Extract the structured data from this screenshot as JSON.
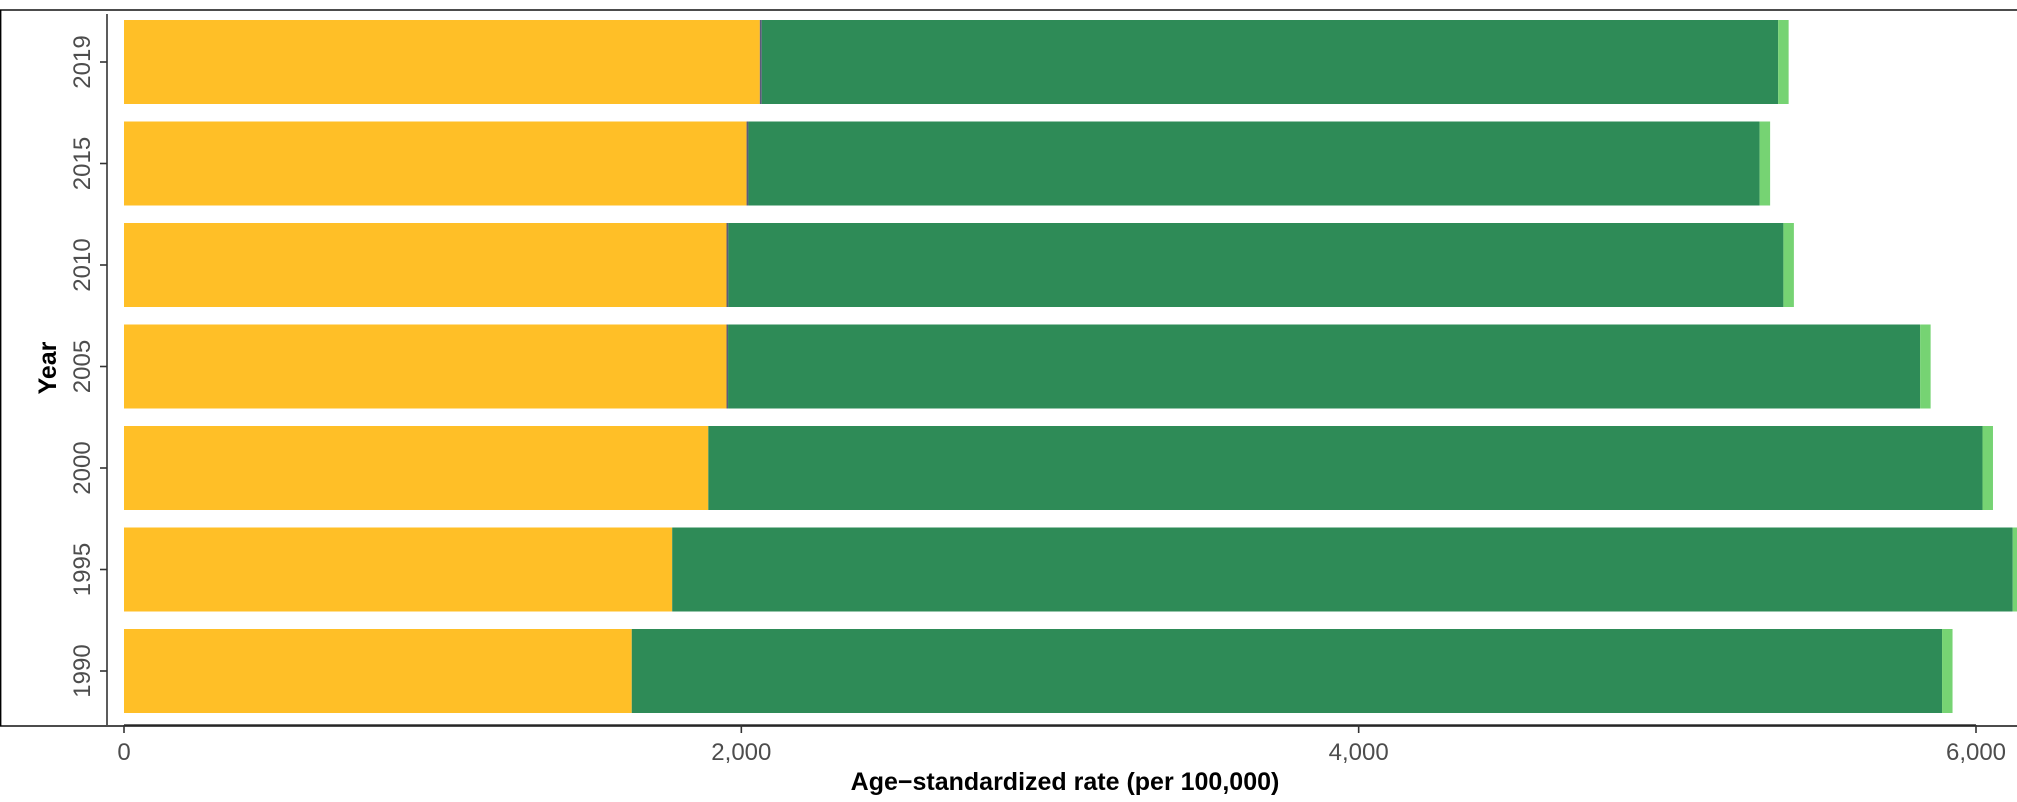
{
  "chart_data": {
    "type": "bar",
    "orientation": "horizontal",
    "stacked": true,
    "xlabel": "Age−standardized rate (per 100,000)",
    "ylabel": "Year",
    "xlim": [
      0,
      6100
    ],
    "xticks": [
      0,
      2000,
      4000,
      6000
    ],
    "xtick_labels": [
      "0",
      "2,000",
      "4,000",
      "6,000"
    ],
    "categories": [
      "1990",
      "1995",
      "2000",
      "2005",
      "2010",
      "2015",
      "2019"
    ],
    "series": [
      {
        "color": "#FFBF27",
        "values": [
          1645,
          1776,
          1893,
          1952,
          1952,
          2017,
          2060
        ]
      },
      {
        "color": "#5B5B7A",
        "values": [
          0,
          0,
          0,
          5,
          6,
          6,
          6
        ]
      },
      {
        "color": "#2E8B57",
        "values": [
          4245,
          4343,
          4128,
          3862,
          3418,
          3276,
          3293
        ]
      },
      {
        "color": "#76D373",
        "values": [
          34,
          34,
          34,
          34,
          34,
          34,
          34
        ]
      }
    ],
    "legend": "none",
    "grid": false
  }
}
